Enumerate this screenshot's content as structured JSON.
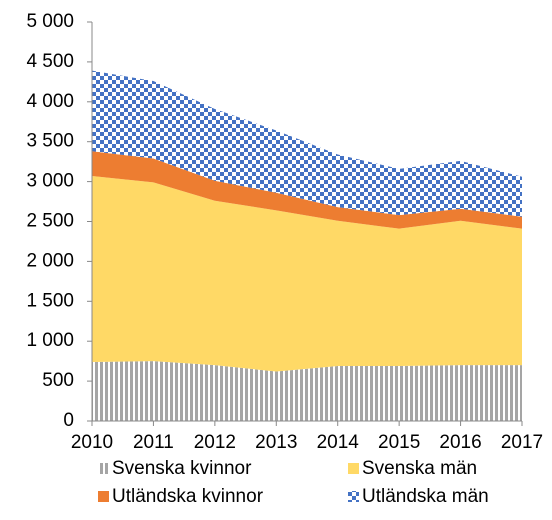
{
  "chart_data": {
    "type": "stacked-area",
    "x": [
      2010,
      2011,
      2012,
      2013,
      2014,
      2015,
      2016,
      2017
    ],
    "xlim": [
      2010,
      2017
    ],
    "xticks": [
      2010,
      2011,
      2012,
      2013,
      2014,
      2015,
      2016,
      2017
    ],
    "ylim": [
      0,
      5000
    ],
    "yticks": [
      0,
      500,
      {
        "value": 1000,
        "label": "1 000"
      },
      {
        "value": 1500,
        "label": "1 500"
      },
      {
        "value": 2000,
        "label": "2 000"
      },
      {
        "value": 2500,
        "label": "2 500"
      },
      {
        "value": 3000,
        "label": "3 000"
      },
      {
        "value": 3500,
        "label": "3 500"
      },
      {
        "value": 4000,
        "label": "4 000"
      },
      {
        "value": 4500,
        "label": "4 500"
      },
      {
        "value": 5000,
        "label": "5 000"
      }
    ],
    "series": [
      {
        "name": "Svenska kvinnor",
        "color": "#a5a5a5",
        "pattern": "vertical-stripes",
        "values": [
          740,
          750,
          700,
          620,
          690,
          690,
          700,
          700
        ]
      },
      {
        "name": "Svenska män",
        "color": "#ffd966",
        "pattern": "solid",
        "values": [
          2330,
          2240,
          2060,
          2020,
          1820,
          1720,
          1810,
          1710
        ]
      },
      {
        "name": "Utländska kvinnor",
        "color": "#ed7d31",
        "pattern": "solid",
        "values": [
          310,
          300,
          250,
          220,
          170,
          170,
          150,
          150
        ]
      },
      {
        "name": "Utländska män",
        "color": "#4472c4",
        "pattern": "checker",
        "values": [
          1010,
          970,
          900,
          780,
          660,
          580,
          600,
          500
        ]
      }
    ]
  }
}
